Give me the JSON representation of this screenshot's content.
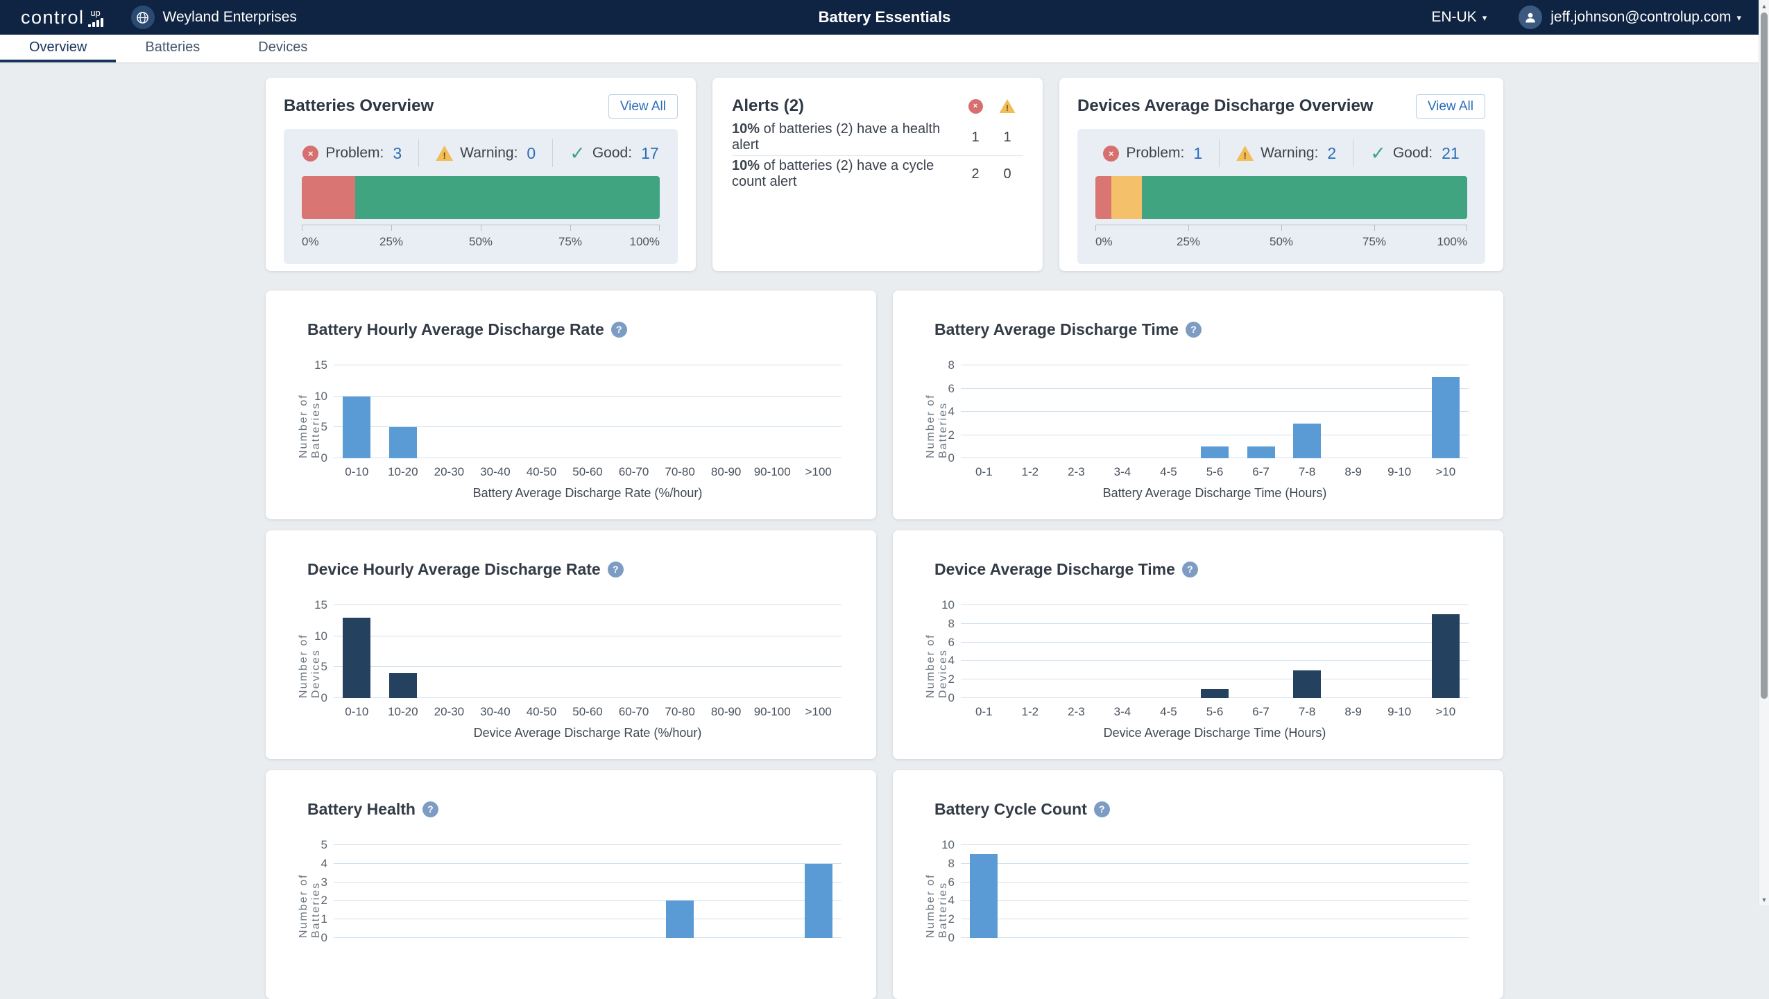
{
  "navbar": {
    "brand": "control",
    "brand_suffix": "up",
    "org": "Weyland Enterprises",
    "title": "Battery Essentials",
    "locale": "EN-UK",
    "user_email": "jeff.johnson@controlup.com"
  },
  "tabs": [
    {
      "label": "Overview",
      "active": true
    },
    {
      "label": "Batteries",
      "active": false
    },
    {
      "label": "Devices",
      "active": false
    }
  ],
  "icons": {
    "caret": "▾",
    "close": "×",
    "warning_mark": "!",
    "check": "✓",
    "question": "?",
    "scroll_up": "▲",
    "scroll_down": "▼"
  },
  "colors": {
    "navbar_bg": "#0f2442",
    "accent_blue": "#2a6db8",
    "problem_red": "#d97573",
    "warning_yellow": "#f4c06a",
    "good_green": "#41a480",
    "chart_blue": "#5b9bd5",
    "chart_navy": "#24415f"
  },
  "batteries_overview": {
    "title": "Batteries Overview",
    "view_all": "View All",
    "problem_label": "Problem:",
    "problem": "3",
    "warning_label": "Warning:",
    "warning": "0",
    "good_label": "Good:",
    "good": "17",
    "segments": [
      {
        "name": "problem",
        "pct": 15,
        "color": "#d97573"
      },
      {
        "name": "good",
        "pct": 85,
        "color": "#41a480"
      }
    ],
    "axis": [
      "0%",
      "25%",
      "50%",
      "75%",
      "100%"
    ]
  },
  "alerts": {
    "title": "Alerts (2)",
    "rows": [
      {
        "pct": "10%",
        "text": "of batteries (2) have a health alert",
        "error": "1",
        "warning": "1"
      },
      {
        "pct": "10%",
        "text": "of batteries (2) have a cycle count alert",
        "error": "2",
        "warning": "0"
      }
    ]
  },
  "devices_overview": {
    "title": "Devices Average Discharge Overview",
    "view_all": "View All",
    "problem_label": "Problem:",
    "problem": "1",
    "warning_label": "Warning:",
    "warning": "2",
    "good_label": "Good:",
    "good": "21",
    "segments": [
      {
        "name": "problem",
        "pct": 4.2,
        "color": "#d97573"
      },
      {
        "name": "warning",
        "pct": 8.3,
        "color": "#f4c06a"
      },
      {
        "name": "good",
        "pct": 87.5,
        "color": "#41a480"
      }
    ],
    "axis": [
      "0%",
      "25%",
      "50%",
      "75%",
      "100%"
    ]
  },
  "chart_data": [
    {
      "type": "bar",
      "title": "Battery Hourly Average Discharge Rate",
      "categories": [
        "0-10",
        "10-20",
        "20-30",
        "30-40",
        "40-50",
        "50-60",
        "60-70",
        "70-80",
        "80-90",
        "90-100",
        ">100"
      ],
      "values": [
        10,
        5,
        0,
        0,
        0,
        0,
        0,
        0,
        0,
        0,
        0
      ],
      "xlabel": "Battery Average Discharge Rate (%/hour)",
      "ylabel": "Number of Batteries",
      "ylim": [
        0,
        15
      ],
      "ytick": 5,
      "grid": true,
      "bar_color": "#5b9bd5"
    },
    {
      "type": "bar",
      "title": "Battery Average Discharge Time",
      "categories": [
        "0-1",
        "1-2",
        "2-3",
        "3-4",
        "4-5",
        "5-6",
        "6-7",
        "7-8",
        "8-9",
        "9-10",
        ">10"
      ],
      "values": [
        0,
        0,
        0,
        0,
        0,
        1,
        1,
        3,
        0,
        0,
        7
      ],
      "xlabel": "Battery Average Discharge Time (Hours)",
      "ylabel": "Number of Batteries",
      "ylim": [
        0,
        8
      ],
      "ytick": 2,
      "grid": true,
      "bar_color": "#5b9bd5"
    },
    {
      "type": "bar",
      "title": "Device Hourly Average Discharge Rate",
      "categories": [
        "0-10",
        "10-20",
        "20-30",
        "30-40",
        "40-50",
        "50-60",
        "60-70",
        "70-80",
        "80-90",
        "90-100",
        ">100"
      ],
      "values": [
        13,
        4,
        0,
        0,
        0,
        0,
        0,
        0,
        0,
        0,
        0
      ],
      "xlabel": "Device Average Discharge Rate (%/hour)",
      "ylabel": "Number of Devices",
      "ylim": [
        0,
        15
      ],
      "ytick": 5,
      "grid": true,
      "bar_color": "#24415f"
    },
    {
      "type": "bar",
      "title": "Device Average Discharge Time",
      "categories": [
        "0-1",
        "1-2",
        "2-3",
        "3-4",
        "4-5",
        "5-6",
        "6-7",
        "7-8",
        "8-9",
        "9-10",
        ">10"
      ],
      "values": [
        0,
        0,
        0,
        0,
        0,
        1,
        0,
        3,
        0,
        0,
        9
      ],
      "xlabel": "Device Average Discharge Time (Hours)",
      "ylabel": "Number of Devices",
      "ylim": [
        0,
        10
      ],
      "ytick": 2,
      "grid": true,
      "bar_color": "#24415f"
    },
    {
      "type": "bar",
      "title": "Battery Health",
      "values": [
        0,
        0,
        0,
        0,
        0,
        0,
        0,
        2,
        0,
        0,
        4
      ],
      "ylabel": "Number of Batteries",
      "ylim": [
        0,
        5
      ],
      "ytick": 1,
      "grid": true,
      "bar_color": "#5b9bd5",
      "note": "partially visible, cut off at bottom of viewport"
    },
    {
      "type": "bar",
      "title": "Battery Cycle Count",
      "values": [
        9,
        0,
        0,
        0,
        0,
        0,
        0,
        0,
        0,
        0,
        0
      ],
      "ylabel": "Number of Batteries",
      "ylim": [
        0,
        10
      ],
      "ytick": 2,
      "grid": true,
      "bar_color": "#5b9bd5",
      "note": "partially visible, cut off at bottom of viewport"
    }
  ]
}
